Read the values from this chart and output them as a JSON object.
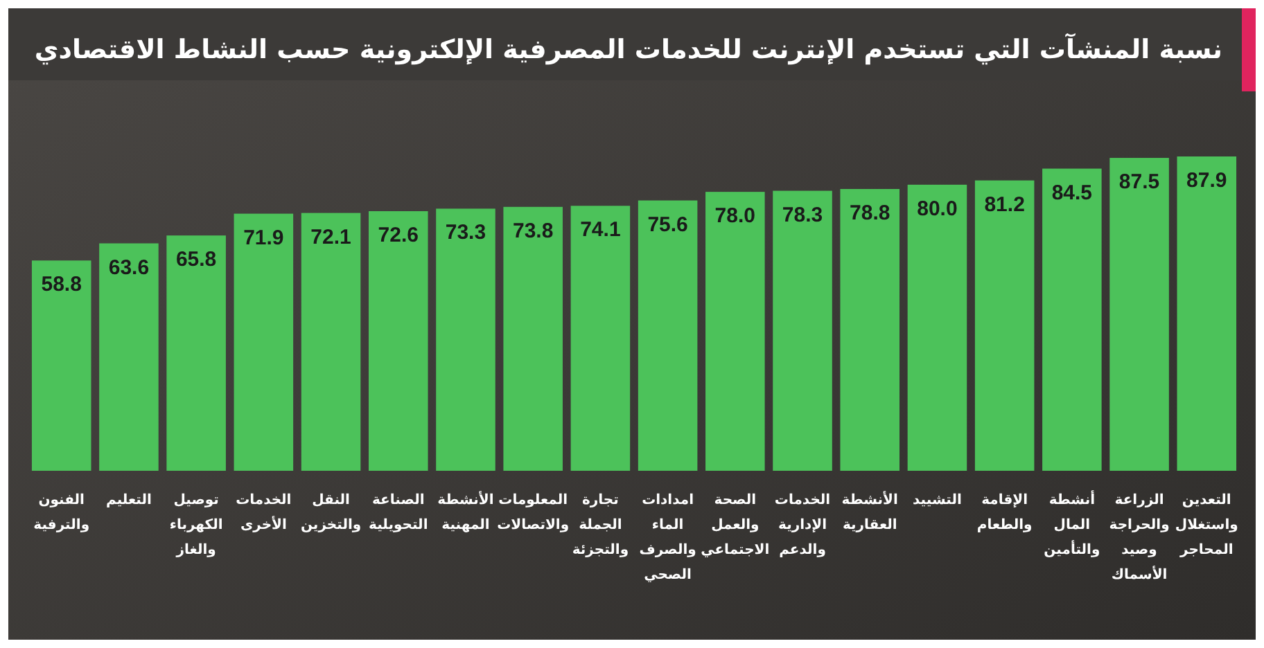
{
  "chart_data": {
    "type": "bar",
    "title": "نسبة المنشآت التي تستخدم الإنترنت للخدمات المصرفية الإلكترونية حسب النشاط الاقتصادي",
    "categories": [
      "الفنون والترفية",
      "التعليم",
      "توصيل الكهرباء والغاز",
      "الخدمات الأخرى",
      "النقل والتخزين",
      "الصناعة التحويلية",
      "الأنشطة المهنية",
      "المعلومات والاتصالات",
      "تجارة الجملة والتجزئة",
      "امدادات الماء والصرف الصحي",
      "الصحة والعمل الاجتماعي",
      "الخدمات الإدارية والدعم",
      "الأنشطة العقارية",
      "التشييد",
      "الإقامة والطعام",
      "أنشطة المال والتأمين",
      "الزراعة والحراجة وصيد الأسماك",
      "التعدين واستغلال المحاجر"
    ],
    "values": [
      58.8,
      63.6,
      65.8,
      71.9,
      72.1,
      72.6,
      73.3,
      73.8,
      74.1,
      75.6,
      78.0,
      78.3,
      78.8,
      80.0,
      81.2,
      84.5,
      87.5,
      87.9
    ],
    "value_labels": [
      "58.8",
      "63.6",
      "65.8",
      "71.9",
      "72.1",
      "72.6",
      "73.3",
      "73.8",
      "74.1",
      "75.6",
      "78.0",
      "78.3",
      "78.8",
      "80.0",
      "81.2",
      "84.5",
      "87.5",
      "87.9"
    ],
    "color": "#4cc25a"
  }
}
